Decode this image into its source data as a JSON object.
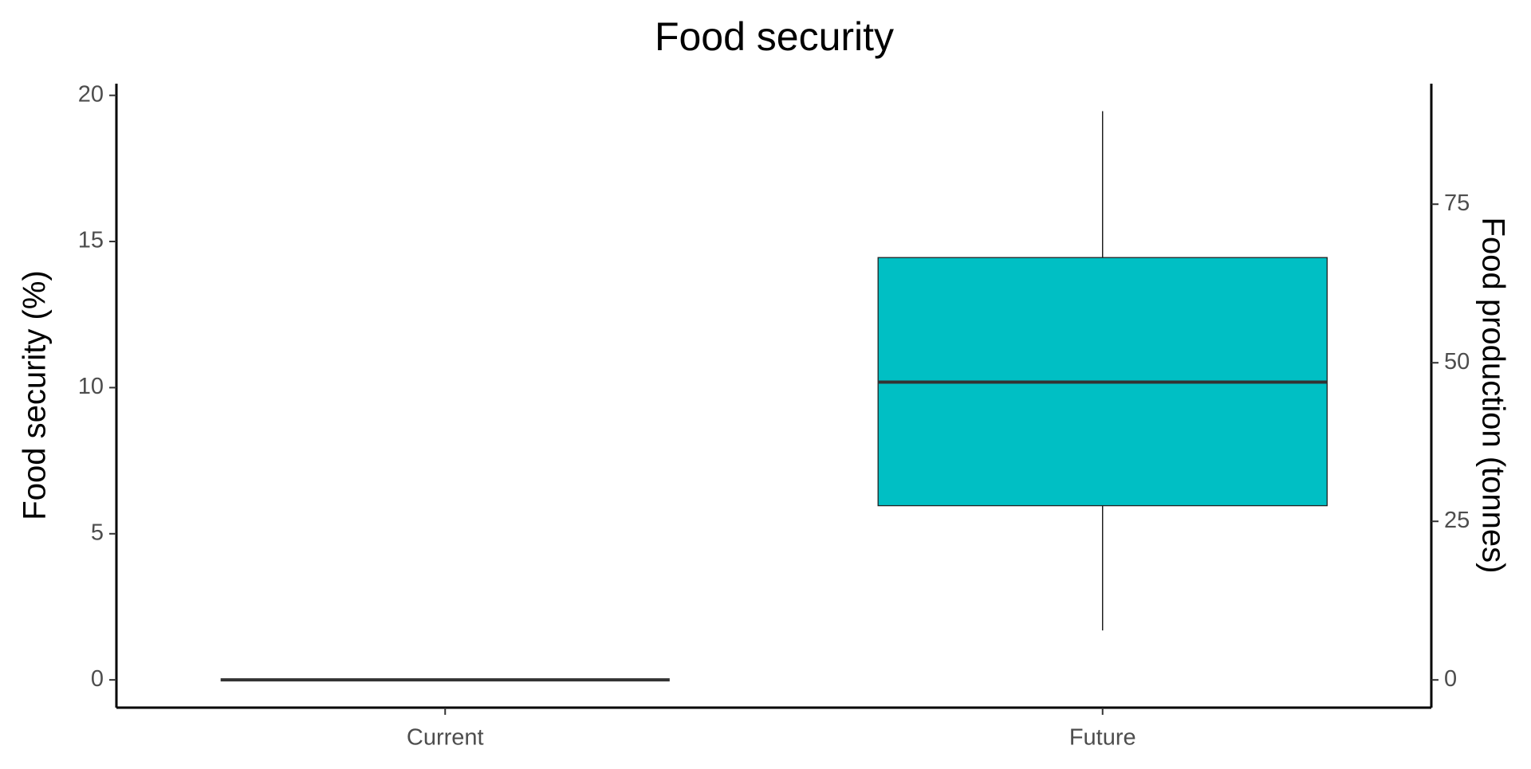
{
  "chart_data": {
    "type": "box",
    "title": "Food security",
    "categories": [
      "Current",
      "Future"
    ],
    "boxes": [
      {
        "min": 0,
        "q1": 0,
        "median": 0,
        "q3": 0,
        "max": 0
      },
      {
        "min": 1.69,
        "q1": 5.96,
        "median": 10.19,
        "q3": 14.45,
        "max": 19.46
      }
    ],
    "colors": [
      "#f8766d",
      "#00bfc4"
    ],
    "y_label": "Food security (%)",
    "y2_label": "Food production (tonnes)",
    "ylim": [
      -0.95,
      20.4
    ],
    "yticks": [
      0,
      5,
      10,
      15,
      20
    ],
    "y2lim": [
      -4.37,
      94.0
    ],
    "y2ticks": [
      0,
      25,
      50,
      75
    ],
    "grid": false
  }
}
